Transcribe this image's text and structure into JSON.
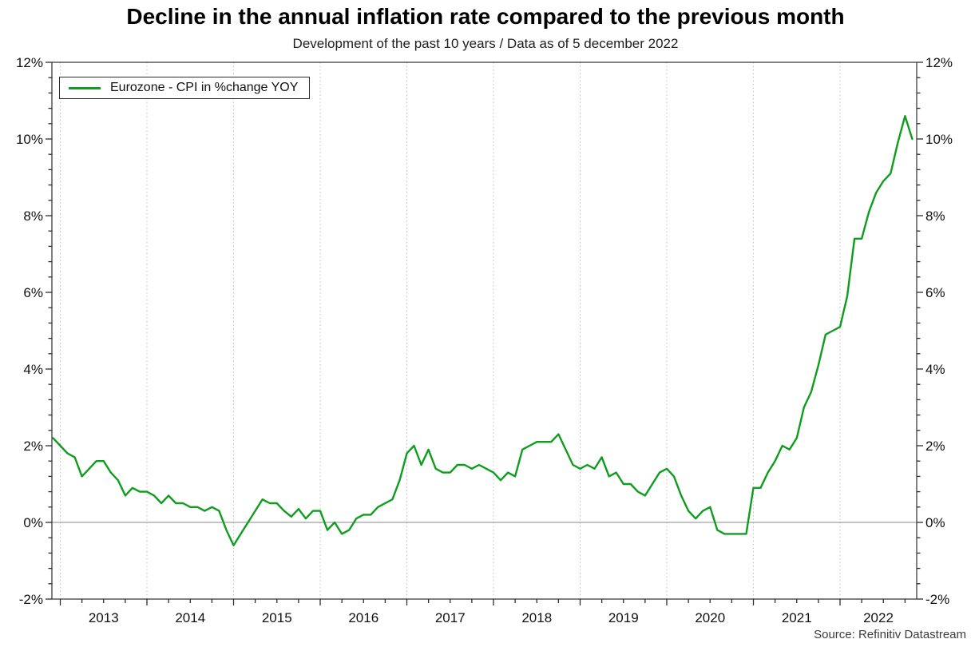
{
  "chart_data": {
    "type": "line",
    "title": "Decline in the annual inflation rate compared to the previous month",
    "subtitle": "Development of the past 10 years / Data as of 5 december 2022",
    "source": "Source: Refinitiv Datastream",
    "xlabel": "",
    "ylabel": "",
    "ylim": [
      -2,
      12
    ],
    "y_major_step": 2,
    "y_minor_step": 0.4,
    "y_tick_suffix": "%",
    "y_tick_labels": [
      "-2%",
      "0%",
      "2%",
      "4%",
      "6%",
      "8%",
      "10%",
      "12%"
    ],
    "y_axis_sides": "both",
    "x_tick_labels": [
      "2013",
      "2014",
      "2015",
      "2016",
      "2017",
      "2018",
      "2019",
      "2020",
      "2021",
      "2022"
    ],
    "x_minor_ticks": "quarterly",
    "grid": {
      "vertical": "dotted line at each January",
      "horizontal": "none",
      "zero_line": true
    },
    "legend": {
      "position": "top-left",
      "entries": [
        "Eurozone - CPI in %change YOY"
      ]
    },
    "series": [
      {
        "name": "Eurozone - CPI in %change YOY",
        "frequency": "monthly",
        "start": "2012-12",
        "end": "2022-11",
        "values": [
          2.2,
          2.0,
          1.8,
          1.7,
          1.2,
          1.4,
          1.6,
          1.6,
          1.3,
          1.1,
          0.7,
          0.9,
          0.8,
          0.8,
          0.7,
          0.5,
          0.7,
          0.5,
          0.5,
          0.4,
          0.4,
          0.3,
          0.4,
          0.3,
          -0.2,
          -0.6,
          -0.3,
          0.0,
          0.3,
          0.6,
          0.5,
          0.5,
          0.3,
          0.15,
          0.35,
          0.1,
          0.3,
          0.3,
          -0.2,
          0.0,
          -0.3,
          -0.2,
          0.1,
          0.2,
          0.2,
          0.4,
          0.5,
          0.6,
          1.1,
          1.8,
          2.0,
          1.5,
          1.9,
          1.4,
          1.3,
          1.3,
          1.5,
          1.5,
          1.4,
          1.5,
          1.4,
          1.3,
          1.1,
          1.3,
          1.2,
          1.9,
          2.0,
          2.1,
          2.1,
          2.1,
          2.3,
          1.9,
          1.5,
          1.4,
          1.5,
          1.4,
          1.7,
          1.2,
          1.3,
          1.0,
          1.0,
          0.8,
          0.7,
          1.0,
          1.3,
          1.4,
          1.2,
          0.7,
          0.3,
          0.1,
          0.3,
          0.4,
          -0.2,
          -0.3,
          -0.3,
          -0.3,
          -0.3,
          0.9,
          0.9,
          1.3,
          1.6,
          2.0,
          1.9,
          2.2,
          3.0,
          3.4,
          4.1,
          4.9,
          5.0,
          5.1,
          5.9,
          7.4,
          7.4,
          8.1,
          8.6,
          8.9,
          9.1,
          9.9,
          10.6,
          10.0
        ]
      }
    ]
  },
  "colors": {
    "line": "#0f9d1e",
    "grid": "#c0c0c0",
    "zero_line": "#8a8a8a",
    "frame": "#3d3d3d",
    "tick": "#2e2e2e",
    "axis_text": "#111111",
    "title_text": "#000000",
    "source_text": "#3c3c3c"
  }
}
